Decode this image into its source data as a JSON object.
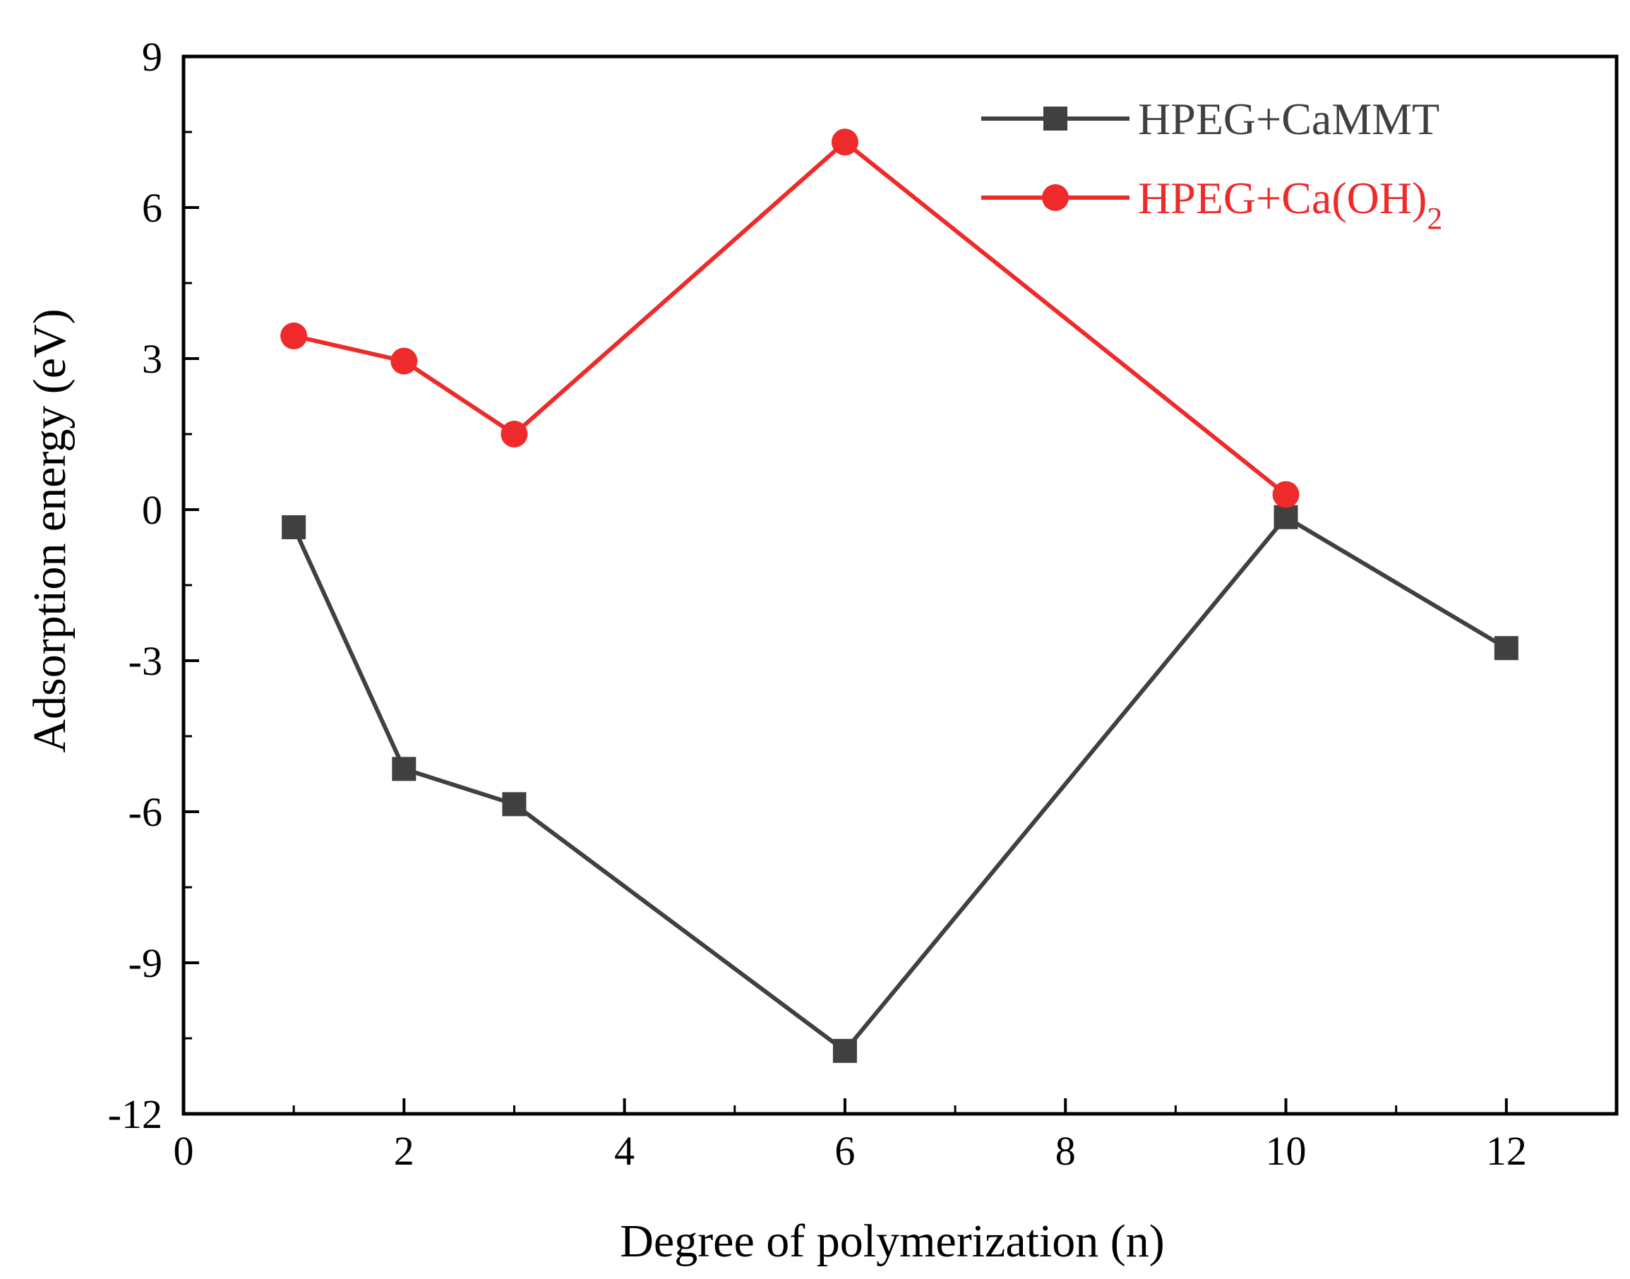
{
  "chart_data": {
    "type": "line",
    "title": "",
    "xlabel": "Degree of polymerization (n)",
    "ylabel": "Adsorption energy (eV)",
    "xlim": [
      0,
      13
    ],
    "ylim": [
      -12,
      9
    ],
    "xticks": [
      0,
      2,
      4,
      6,
      8,
      10,
      12
    ],
    "xtick_labels": [
      "0",
      "2",
      "4",
      "6",
      "8",
      "10",
      "12"
    ],
    "yticks": [
      9,
      6,
      3,
      0,
      -3,
      -6,
      -9,
      -12
    ],
    "ytick_labels": [
      "9",
      "6",
      "3",
      "0",
      "-3",
      "-6",
      "-9",
      "-12"
    ],
    "x_minor_step": 1,
    "y_minor_step": 1.5,
    "grid": false,
    "legend_position": "top-right",
    "series": [
      {
        "name": "HPEG+CaMMT",
        "legend_main": "HPEG+CaMMT",
        "legend_sub": "",
        "color": "#404040",
        "marker": "square",
        "x": [
          1,
          2,
          3,
          6,
          10,
          12
        ],
        "values": [
          -0.35,
          -5.15,
          -5.85,
          -10.75,
          -0.15,
          -2.75
        ]
      },
      {
        "name": "HPEG+Ca(OH)2",
        "legend_main": "HPEG+Ca(OH)",
        "legend_sub": "2",
        "color": "#ee2a2a",
        "marker": "circle",
        "x": [
          1,
          2,
          3,
          6,
          10
        ],
        "values": [
          3.45,
          2.95,
          1.5,
          7.3,
          0.3
        ]
      }
    ]
  }
}
